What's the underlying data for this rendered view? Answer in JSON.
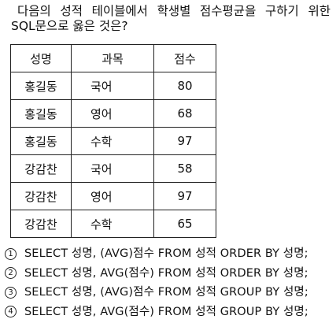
{
  "question": {
    "line1_words": [
      "다음의",
      "성적",
      "테이블에서",
      "학생별",
      "점수평균을",
      "구하기",
      "위한"
    ],
    "line2": "SQL문으로 옳은 것은?"
  },
  "table": {
    "headers": [
      "성명",
      "과목",
      "점수"
    ],
    "rows": [
      [
        "홍길동",
        "국어",
        "80"
      ],
      [
        "홍길동",
        "영어",
        "68"
      ],
      [
        "홍길동",
        "수학",
        "97"
      ],
      [
        "강감찬",
        "국어",
        "58"
      ],
      [
        "강감찬",
        "영어",
        "97"
      ],
      [
        "강감찬",
        "수학",
        "65"
      ]
    ]
  },
  "choices": [
    {
      "num": "1",
      "text": "SELECT 성명, (AVG)점수 FROM 성적 ORDER BY 성명;"
    },
    {
      "num": "2",
      "text": "SELECT 성명, AVG(점수) FROM 성적 ORDER BY 성명;"
    },
    {
      "num": "3",
      "text": "SELECT 성명, (AVG)점수 FROM 성적 GROUP BY 성명;"
    },
    {
      "num": "4",
      "text": "SELECT 성명, AVG(점수) FROM 성적 GROUP BY 성명;"
    }
  ]
}
